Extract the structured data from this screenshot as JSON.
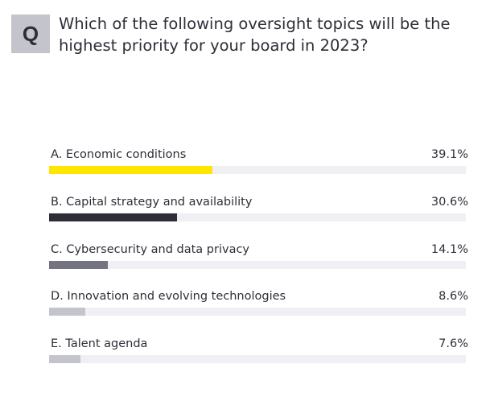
{
  "question": {
    "badge": "Q",
    "text": "Which of the following oversight topics will be the highest priority for your board in 2023?"
  },
  "chart_data": {
    "type": "bar",
    "orientation": "horizontal",
    "title": "Which of the following oversight topics will be the highest priority for your board in 2023?",
    "categories": [
      "A. Economic conditions",
      "B. Capital strategy and availability",
      "C. Cybersecurity and data privacy",
      "D. Innovation and evolving technologies",
      "E. Talent agenda"
    ],
    "values": [
      39.1,
      30.6,
      14.1,
      8.6,
      7.6
    ],
    "value_labels": [
      "39.1%",
      "30.6%",
      "14.1%",
      "8.6%",
      "7.6%"
    ],
    "colors": [
      "#ffe600",
      "#2e2e38",
      "#747480",
      "#c4c4cd",
      "#c4c4cd"
    ],
    "xlim": [
      0,
      100
    ],
    "grid": false
  }
}
